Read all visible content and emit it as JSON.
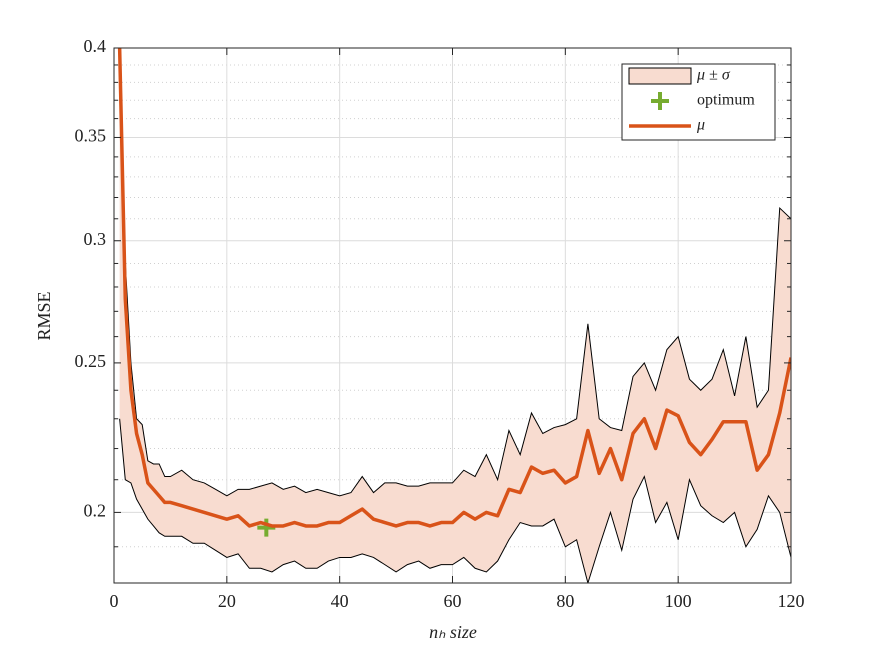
{
  "chart_data": {
    "type": "band-line",
    "xlabel": "nₕ size",
    "ylabel": "RMSE",
    "yscale": "log",
    "grid": true,
    "legend": "upper right",
    "xlim": [
      0,
      120
    ],
    "xticks": [
      0,
      20,
      40,
      60,
      80,
      100,
      120
    ],
    "ylim": [
      0.18,
      0.4
    ],
    "yticks": [
      0.2,
      0.25,
      0.3,
      0.35,
      0.4
    ],
    "yminorticks": [
      0.18,
      0.19,
      0.21,
      0.22,
      0.23,
      0.24,
      0.26,
      0.27,
      0.28,
      0.29,
      0.31,
      0.32,
      0.33,
      0.34,
      0.36,
      0.37,
      0.38,
      0.39
    ],
    "x": [
      1,
      2,
      3,
      4,
      5,
      6,
      7,
      8,
      9,
      10,
      12,
      14,
      16,
      18,
      20,
      22,
      24,
      26,
      28,
      30,
      32,
      34,
      36,
      38,
      40,
      42,
      44,
      46,
      48,
      50,
      52,
      54,
      56,
      58,
      60,
      62,
      64,
      66,
      68,
      70,
      72,
      74,
      76,
      78,
      80,
      82,
      84,
      86,
      88,
      90,
      92,
      94,
      96,
      98,
      100,
      102,
      104,
      106,
      108,
      110,
      112,
      114,
      116,
      118,
      120
    ],
    "series": [
      {
        "name": "μ ± σ",
        "type": "band",
        "color": "#f8dcd0",
        "upper": [
          0.4,
          0.29,
          0.25,
          0.23,
          0.228,
          0.216,
          0.215,
          0.215,
          0.211,
          0.211,
          0.213,
          0.21,
          0.209,
          0.207,
          0.205,
          0.207,
          0.207,
          0.208,
          0.209,
          0.207,
          0.208,
          0.206,
          0.207,
          0.206,
          0.205,
          0.206,
          0.211,
          0.206,
          0.209,
          0.209,
          0.208,
          0.208,
          0.209,
          0.209,
          0.209,
          0.213,
          0.211,
          0.218,
          0.21,
          0.226,
          0.218,
          0.232,
          0.225,
          0.227,
          0.228,
          0.23,
          0.265,
          0.23,
          0.227,
          0.226,
          0.245,
          0.25,
          0.24,
          0.255,
          0.26,
          0.244,
          0.24,
          0.244,
          0.255,
          0.238,
          0.26,
          0.234,
          0.24,
          0.315,
          0.31
        ],
        "lower": [
          0.23,
          0.21,
          0.209,
          0.204,
          0.201,
          0.198,
          0.196,
          0.194,
          0.193,
          0.193,
          0.193,
          0.191,
          0.191,
          0.189,
          0.187,
          0.188,
          0.184,
          0.184,
          0.183,
          0.185,
          0.186,
          0.184,
          0.184,
          0.186,
          0.187,
          0.187,
          0.188,
          0.187,
          0.185,
          0.183,
          0.185,
          0.186,
          0.184,
          0.185,
          0.185,
          0.187,
          0.184,
          0.183,
          0.186,
          0.192,
          0.197,
          0.196,
          0.196,
          0.198,
          0.19,
          0.192,
          0.18,
          0.19,
          0.2,
          0.189,
          0.204,
          0.211,
          0.197,
          0.203,
          0.192,
          0.21,
          0.202,
          0.199,
          0.197,
          0.2,
          0.19,
          0.195,
          0.205,
          0.2,
          0.187
        ]
      },
      {
        "name": "optimum",
        "type": "scatter",
        "color": "#77ac30",
        "x": [
          27
        ],
        "values": [
          0.1955
        ]
      },
      {
        "name": "μ",
        "type": "line",
        "color": "#d95319",
        "values": [
          0.4,
          0.275,
          0.24,
          0.225,
          0.218,
          0.209,
          0.207,
          0.205,
          0.203,
          0.203,
          0.202,
          0.201,
          0.2,
          0.199,
          0.198,
          0.199,
          0.196,
          0.197,
          0.196,
          0.196,
          0.197,
          0.196,
          0.196,
          0.197,
          0.197,
          0.199,
          0.201,
          0.198,
          0.197,
          0.196,
          0.197,
          0.197,
          0.196,
          0.197,
          0.197,
          0.2,
          0.198,
          0.2,
          0.199,
          0.207,
          0.206,
          0.214,
          0.212,
          0.213,
          0.209,
          0.211,
          0.226,
          0.212,
          0.22,
          0.21,
          0.225,
          0.23,
          0.22,
          0.233,
          0.231,
          0.222,
          0.218,
          0.223,
          0.229,
          0.229,
          0.229,
          0.213,
          0.218,
          0.232,
          0.252
        ]
      }
    ]
  }
}
